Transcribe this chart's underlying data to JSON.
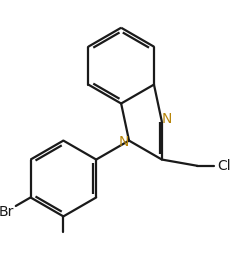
{
  "background_color": "#ffffff",
  "bond_color": "#1a1a1a",
  "N_color": "#b8860b",
  "Br_color": "#1a1a1a",
  "Cl_color": "#1a1a1a",
  "bond_width": 1.6,
  "font_size_N": 10,
  "font_size_label": 10,
  "figsize": [
    2.32,
    2.62
  ],
  "dpi": 100,
  "xlim": [
    0.0,
    2.32
  ],
  "ylim": [
    0.0,
    2.62
  ]
}
